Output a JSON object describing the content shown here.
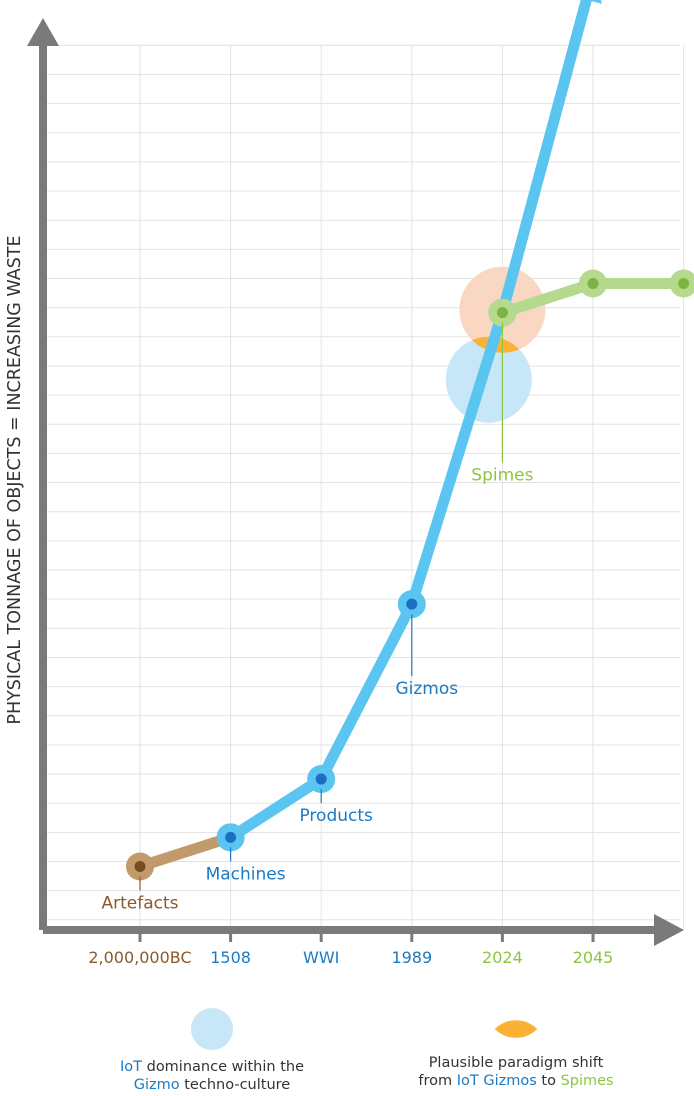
{
  "chart_data": {
    "type": "line",
    "ylabel": "PHYSICAL TONNAGE OF OBJECTS = INCREASING WASTE",
    "xlabel": "",
    "categories": [
      "2,000,000BC",
      "1508",
      "WWI",
      "1989",
      "2024",
      "2045"
    ],
    "category_colors": [
      "#8b5a2b",
      "#1a7ac4",
      "#1a7ac4",
      "#1a7ac4",
      "#8cc63f",
      "#8cc63f"
    ],
    "ylim": [
      0,
      30
    ],
    "grid": true,
    "series": [
      {
        "key": "artefacts",
        "color": "#c19a6b",
        "dot": "#7a4a22",
        "points": [
          [
            0,
            1
          ],
          [
            1,
            2
          ]
        ]
      },
      {
        "key": "gizmo",
        "color": "#5bc5f2",
        "dot": "#1a6fc0",
        "points": [
          [
            1,
            2
          ],
          [
            2,
            4
          ],
          [
            3,
            10
          ],
          [
            4,
            20
          ],
          [
            4.95,
            31
          ]
        ]
      },
      {
        "key": "spimes",
        "color": "#b5da8e",
        "dot": "#7cb342",
        "points": [
          [
            4,
            20
          ],
          [
            5,
            21
          ],
          [
            6,
            21
          ]
        ]
      }
    ],
    "annotations": [
      {
        "text": "Artefacts",
        "color": "#8b5a2b",
        "x": 0,
        "y": 1,
        "pos": "below"
      },
      {
        "text": "Machines",
        "color": "#1a7ac4",
        "x": 1,
        "y": 2,
        "pos": "below"
      },
      {
        "text": "Products",
        "color": "#1a7ac4",
        "x": 2,
        "y": 4,
        "pos": "below"
      },
      {
        "text": "Gizmos",
        "color": "#1a7ac4",
        "x": 3,
        "y": 10,
        "pos": "below"
      },
      {
        "text": "Spimes",
        "color": "#8cc63f",
        "x": 4,
        "y": 20,
        "pos": "below"
      }
    ],
    "regions": [
      {
        "name": "IoT dominance",
        "color": "#c7e6f7",
        "x": 3.85,
        "y": 17.7
      },
      {
        "name": "Plausible paradigm shift",
        "color": "#f9d7c2",
        "x": 4,
        "y": 20.1
      }
    ]
  },
  "colors": {
    "axis": "#7a7a7a",
    "grid": "#e3e3e3",
    "overlap": "#f9b233",
    "gizmo_blue": "#1a7ac4",
    "spime_green": "#8cc63f",
    "text_dark": "#333333"
  },
  "legend": {
    "iot": {
      "line1_prefix": "IoT",
      "line1_rest": " dominance within the",
      "line2_prefix": "Gizmo",
      "line2_rest": " techno-culture"
    },
    "shift": {
      "line1": "Plausible paradigm shift",
      "line2_a": "from ",
      "line2_b": "IoT Gizmos",
      "line2_c": " to ",
      "line2_d": "Spimes"
    }
  }
}
